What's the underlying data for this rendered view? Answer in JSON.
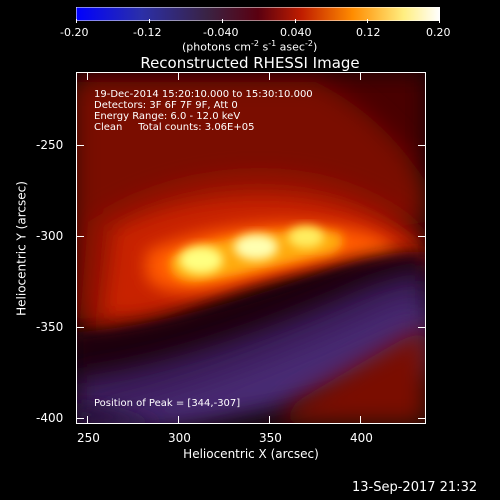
{
  "colorbar": {
    "ticks": [
      "-0.20",
      "-0.12",
      "-0.040",
      "0.040",
      "0.12",
      "0.20"
    ],
    "units_text": "(photons cm",
    "units_exp1": "-2",
    "units_text2": " s",
    "units_exp2": "-1",
    "units_text3": " asec",
    "units_exp3": "-2",
    "units_close": ")",
    "colors": [
      "#0000ff",
      "#2b1a6a",
      "#3a1f4a",
      "#6b0000",
      "#d22a00",
      "#ff9600",
      "#ffff96",
      "#ffffff"
    ]
  },
  "plot": {
    "title": "Reconstructed RHESSI Image",
    "xlabel": "Heliocentric X (arcsec)",
    "ylabel": "Heliocentric Y (arcsec)",
    "xticks": [
      "250",
      "300",
      "350",
      "400"
    ],
    "yticks": [
      "-250",
      "-300",
      "-350",
      "-400"
    ],
    "info_lines": [
      "19-Dec-2014 15:20:10.000 to 15:30:10.000",
      "Detectors: 3F 6F 7F 9F, Att 0",
      "Energy Range: 6.0 - 12.0 keV",
      "Clean     Total counts: 3.06E+05"
    ],
    "peak_text": "Position of Peak = [344,-307]"
  },
  "footer": {
    "timestamp": "13-Sep-2017 21:32"
  }
}
